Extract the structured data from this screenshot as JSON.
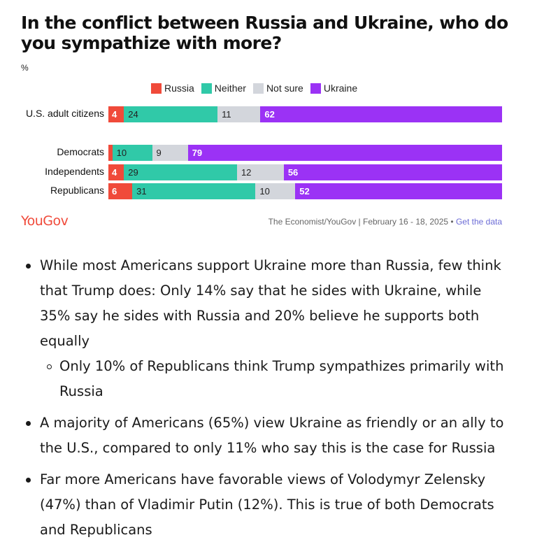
{
  "title": "In the conflict between Russia and Ukraine, who do you sympathize with more?",
  "unit": "%",
  "chart_data": {
    "type": "bar",
    "stacked": true,
    "orientation": "horizontal",
    "title": "In the conflict between Russia and Ukraine, who do you sympathize with more?",
    "ylabel": "%",
    "legend": [
      "Russia",
      "Neither",
      "Not sure",
      "Ukraine"
    ],
    "legend_placement": "top",
    "categories": [
      "U.S. adult citizens",
      "Democrats",
      "Independents",
      "Republicans"
    ],
    "series": [
      {
        "name": "Russia",
        "color": "#f04a3a",
        "values": [
          4,
          1,
          4,
          6
        ]
      },
      {
        "name": "Neither",
        "color": "#30c9a8",
        "values": [
          24,
          10,
          29,
          31
        ]
      },
      {
        "name": "Not sure",
        "color": "#d3d6dc",
        "values": [
          11,
          9,
          12,
          10
        ]
      },
      {
        "name": "Ukraine",
        "color": "#9b32f5",
        "values": [
          62,
          79,
          56,
          52
        ]
      }
    ],
    "data_labels": [
      [
        "4",
        "24",
        "11",
        "62"
      ],
      [
        "",
        "10",
        "9",
        "79"
      ],
      [
        "4",
        "29",
        "12",
        "56"
      ],
      [
        "6",
        "31",
        "10",
        "52"
      ]
    ]
  },
  "footer": {
    "brand": "YouGov",
    "brand_color": "#f04a3a",
    "source": "The Economist/YouGov | February 16 - 18, 2025 • ",
    "link": "Get the data"
  },
  "bullets": [
    {
      "text": "While most Americans support Ukraine more than Russia, few think that Trump does: Only 14% say that he sides with Ukraine, while 35% say he sides with Russia and 20% believe he supports both equally",
      "sub": [
        "Only 10% of Republicans think Trump sympathizes primarily with Russia"
      ]
    },
    {
      "text": "A majority of Americans (65%) view Ukraine as friendly or an ally to the U.S., compared to only 11% who say this is the case for Russia",
      "sub": []
    },
    {
      "text": "Far more Americans have favorable views of Volodymyr Zelensky (47%) than of Vladimir Putin (12%). This is true of both Democrats and Republicans",
      "sub": []
    }
  ]
}
